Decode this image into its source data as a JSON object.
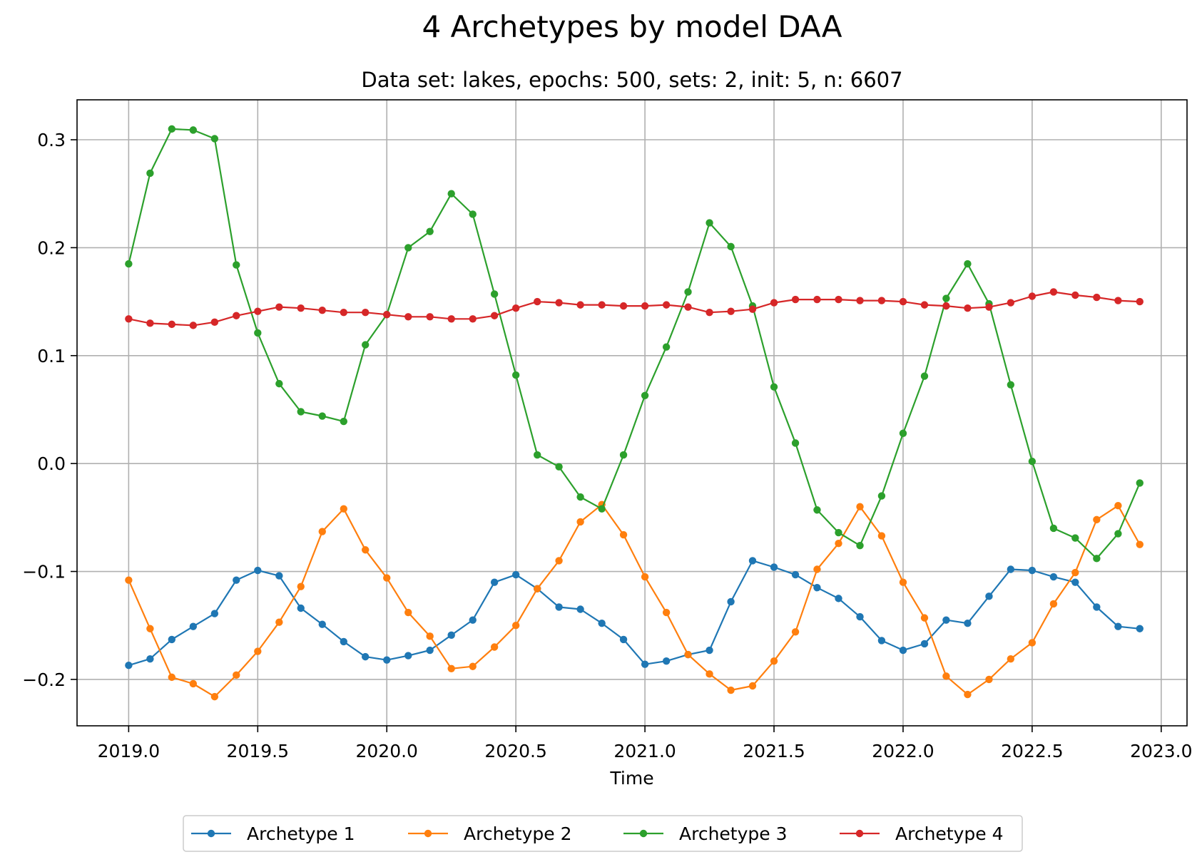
{
  "chart_data": {
    "type": "line",
    "title": "4 Archetypes by model DAA",
    "subtitle": "Data set: lakes, epochs: 500, sets: 2, init: 5, n: 6607",
    "xlabel": "Time",
    "ylabel": "",
    "xlim": [
      2018.8,
      2023.1
    ],
    "ylim": [
      -0.243,
      0.337
    ],
    "grid": true,
    "legend_position": "bottom-center",
    "x_ticks": [
      {
        "value": 2019.0,
        "label": "2019.0"
      },
      {
        "value": 2019.5,
        "label": "2019.5"
      },
      {
        "value": 2020.0,
        "label": "2020.0"
      },
      {
        "value": 2020.5,
        "label": "2020.5"
      },
      {
        "value": 2021.0,
        "label": "2021.0"
      },
      {
        "value": 2021.5,
        "label": "2021.5"
      },
      {
        "value": 2022.0,
        "label": "2022.0"
      },
      {
        "value": 2022.5,
        "label": "2022.5"
      },
      {
        "value": 2023.0,
        "label": "2023.0"
      }
    ],
    "y_ticks": [
      {
        "value": 0.3,
        "label": "0.3"
      },
      {
        "value": 0.2,
        "label": "0.2"
      },
      {
        "value": 0.1,
        "label": "0.1"
      },
      {
        "value": 0.0,
        "label": "0.0"
      },
      {
        "value": -0.1,
        "label": "−0.1"
      },
      {
        "value": -0.2,
        "label": "−0.2"
      }
    ],
    "x": [
      2019.0,
      2019.083,
      2019.167,
      2019.25,
      2019.333,
      2019.417,
      2019.5,
      2019.583,
      2019.667,
      2019.75,
      2019.833,
      2019.917,
      2020.0,
      2020.083,
      2020.167,
      2020.25,
      2020.333,
      2020.417,
      2020.5,
      2020.583,
      2020.667,
      2020.75,
      2020.833,
      2020.917,
      2021.0,
      2021.083,
      2021.167,
      2021.25,
      2021.333,
      2021.417,
      2021.5,
      2021.583,
      2021.667,
      2021.75,
      2021.833,
      2021.917,
      2022.0,
      2022.083,
      2022.167,
      2022.25,
      2022.333,
      2022.417,
      2022.5,
      2022.583,
      2022.667,
      2022.75,
      2022.833,
      2022.917
    ],
    "series": [
      {
        "name": "Archetype 1",
        "color": "#1f77b4",
        "values": [
          -0.187,
          -0.181,
          -0.163,
          -0.151,
          -0.139,
          -0.108,
          -0.099,
          -0.104,
          -0.134,
          -0.149,
          -0.165,
          -0.179,
          -0.182,
          -0.178,
          -0.173,
          -0.159,
          -0.145,
          -0.11,
          -0.103,
          -0.116,
          -0.133,
          -0.135,
          -0.148,
          -0.163,
          -0.186,
          -0.183,
          -0.177,
          -0.173,
          -0.128,
          -0.09,
          -0.096,
          -0.103,
          -0.115,
          -0.125,
          -0.142,
          -0.164,
          -0.173,
          -0.167,
          -0.145,
          -0.148,
          -0.123,
          -0.098,
          -0.099,
          -0.105,
          -0.11,
          -0.133,
          -0.151,
          -0.153
        ]
      },
      {
        "name": "Archetype 2",
        "color": "#ff7f0e",
        "values": [
          -0.108,
          -0.153,
          -0.198,
          -0.204,
          -0.216,
          -0.196,
          -0.174,
          -0.147,
          -0.114,
          -0.063,
          -0.042,
          -0.08,
          -0.106,
          -0.138,
          -0.16,
          -0.19,
          -0.188,
          -0.17,
          -0.15,
          -0.116,
          -0.09,
          -0.054,
          -0.038,
          -0.066,
          -0.105,
          -0.138,
          -0.177,
          -0.195,
          -0.21,
          -0.206,
          -0.183,
          -0.156,
          -0.098,
          -0.074,
          -0.04,
          -0.067,
          -0.11,
          -0.143,
          -0.197,
          -0.214,
          -0.2,
          -0.181,
          -0.166,
          -0.13,
          -0.101,
          -0.052,
          -0.039,
          -0.075
        ]
      },
      {
        "name": "Archetype 3",
        "color": "#2ca02c",
        "values": [
          0.185,
          0.269,
          0.31,
          0.309,
          0.301,
          0.184,
          0.121,
          0.074,
          0.048,
          0.044,
          0.039,
          0.11,
          0.138,
          0.2,
          0.215,
          0.25,
          0.231,
          0.157,
          0.082,
          0.008,
          -0.003,
          -0.031,
          -0.042,
          0.008,
          0.063,
          0.108,
          0.159,
          0.223,
          0.201,
          0.146,
          0.071,
          0.019,
          -0.043,
          -0.064,
          -0.076,
          -0.03,
          0.028,
          0.081,
          0.153,
          0.185,
          0.148,
          0.073,
          0.002,
          -0.06,
          -0.069,
          -0.088,
          -0.065,
          -0.018
        ]
      },
      {
        "name": "Archetype 4",
        "color": "#d62728",
        "values": [
          0.134,
          0.13,
          0.129,
          0.128,
          0.131,
          0.137,
          0.141,
          0.145,
          0.144,
          0.142,
          0.14,
          0.14,
          0.138,
          0.136,
          0.136,
          0.134,
          0.134,
          0.137,
          0.144,
          0.15,
          0.149,
          0.147,
          0.147,
          0.146,
          0.146,
          0.147,
          0.145,
          0.14,
          0.141,
          0.143,
          0.149,
          0.152,
          0.152,
          0.152,
          0.151,
          0.151,
          0.15,
          0.147,
          0.146,
          0.144,
          0.145,
          0.149,
          0.155,
          0.159,
          0.156,
          0.154,
          0.151,
          0.15
        ]
      }
    ]
  }
}
